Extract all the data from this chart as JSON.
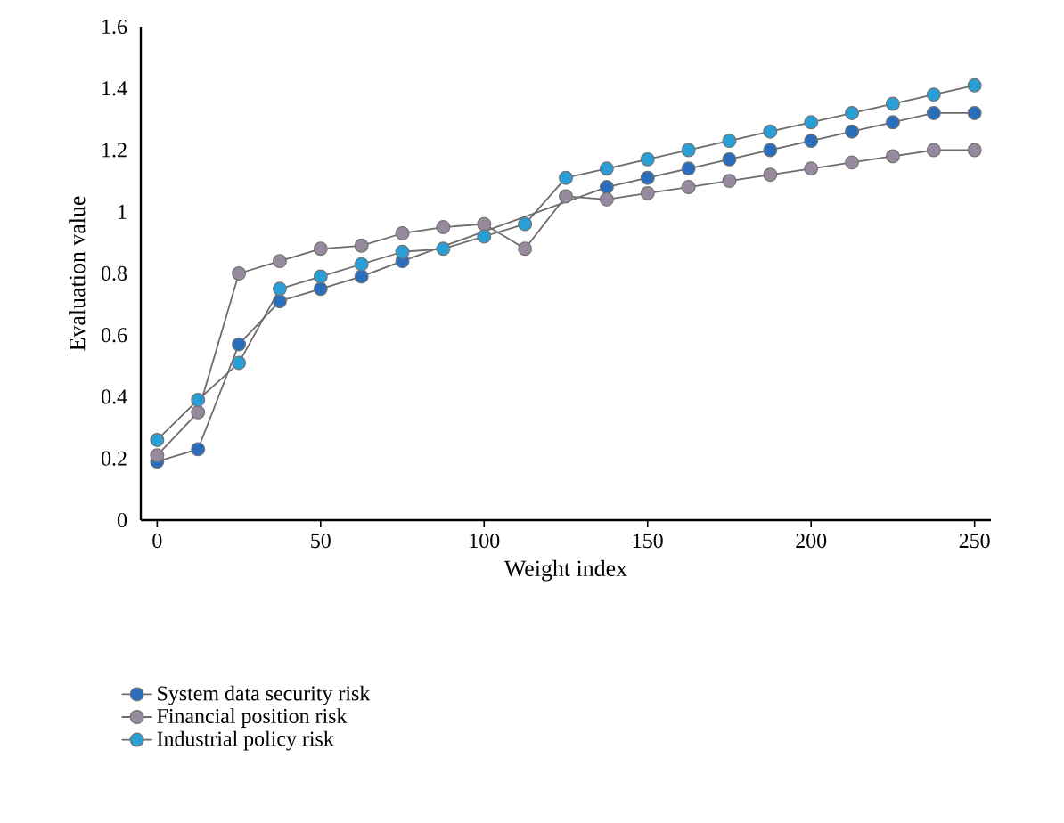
{
  "chart_data": {
    "type": "line",
    "xlabel": "Weight index",
    "ylabel": "Evaluation value",
    "x": [
      0,
      12.5,
      25,
      37.5,
      50,
      62.5,
      75,
      87.5,
      100,
      112.5,
      125,
      137.5,
      150,
      162.5,
      175,
      187.5,
      200,
      212.5,
      225,
      237.5,
      250
    ],
    "series": [
      {
        "name": "System data security risk",
        "color": "#2a6ebb",
        "values": [
          0.19,
          0.23,
          0.57,
          0.71,
          0.75,
          0.79,
          0.84,
          null,
          null,
          null,
          null,
          1.08,
          1.11,
          1.14,
          1.17,
          1.2,
          1.23,
          1.26,
          1.29,
          1.32,
          1.32
        ]
      },
      {
        "name": "Financial position risk",
        "color": "#978a9e",
        "values": [
          0.21,
          0.35,
          0.8,
          0.84,
          0.88,
          0.89,
          0.93,
          0.95,
          0.96,
          0.88,
          1.05,
          1.04,
          1.06,
          1.08,
          1.1,
          1.12,
          1.14,
          1.16,
          1.18,
          1.2,
          1.2
        ]
      },
      {
        "name": "Industrial policy risk",
        "color": "#2a9fd6",
        "values": [
          0.26,
          0.39,
          0.51,
          0.75,
          0.79,
          0.83,
          0.87,
          0.88,
          0.92,
          0.96,
          1.11,
          1.14,
          1.17,
          1.2,
          1.23,
          1.26,
          1.29,
          1.32,
          1.35,
          1.38,
          1.41
        ]
      }
    ],
    "xlim": [
      -5,
      255
    ],
    "xticks": [
      0,
      50,
      100,
      150,
      200,
      250
    ],
    "ylim": [
      0,
      1.6
    ],
    "yticks": [
      0,
      0.2,
      0.4,
      0.6,
      0.8,
      1,
      1.2,
      1.4,
      1.6
    ],
    "grid": false,
    "legend": "bottom left",
    "marker": "circle",
    "line_style": "solid"
  }
}
